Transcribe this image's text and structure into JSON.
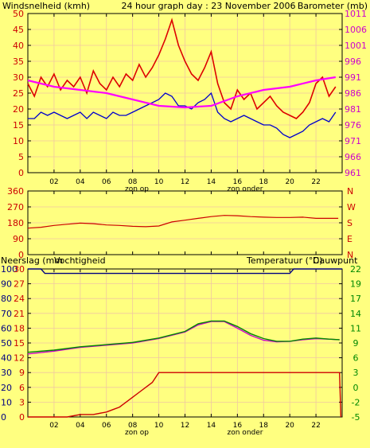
{
  "colors": {
    "background": "#ffff80",
    "frame": "#000000",
    "grid": "#f0c8a0",
    "wind_gust": "#dd0000",
    "wind_avg": "#0000cc",
    "barometer": "#ff00ff",
    "direction": "#cc0000",
    "rain": "#cc0000",
    "humidity": "#000080",
    "temperature": "#008800",
    "dewpoint": "#cc00cc",
    "left_axis_text": "#cc0000",
    "barometer_text": "#cc00cc",
    "direction_text": "#cc0000",
    "humidity_text": "#000080",
    "temperature_text": "#008800"
  },
  "header": {
    "title": "24 hour graph day : 23 November 2006",
    "left_label": "Windsnelheid (kmh)",
    "right_label": "Barometer (mb)"
  },
  "bottom_header": {
    "rain_label": "Neerslag (mm",
    "humidity_label": "Vochtigheid",
    "temp_label": "Temperatuur (°C)",
    "dew_label": "Dauwpunt"
  },
  "sun": {
    "rise": "zon op",
    "set": "zon onder"
  },
  "chart_data": [
    {
      "type": "line",
      "title": "24 hour graph day : 23 November 2006",
      "xticks": [
        "02",
        "04",
        "06",
        "08",
        "10",
        "12",
        "14",
        "16",
        "18",
        "20",
        "22"
      ],
      "y_left": {
        "label": "Windsnelheid (kmh)",
        "ticks": [
          "0",
          "5",
          "10",
          "15",
          "20",
          "25",
          "30",
          "35",
          "40",
          "45",
          "50"
        ],
        "range": [
          0,
          50
        ]
      },
      "y_right": {
        "label": "Barometer (mb)",
        "ticks": [
          "961",
          "966",
          "971",
          "976",
          "981",
          "986",
          "991",
          "996",
          "1001",
          "1006",
          "1011"
        ],
        "range": [
          961,
          1011
        ]
      },
      "series": [
        {
          "key": "gust",
          "x": [
            0.0,
            0.5,
            1.0,
            1.5,
            2.0,
            2.5,
            3.0,
            3.5,
            4.0,
            4.5,
            5.0,
            5.5,
            6.0,
            6.5,
            7.0,
            7.5,
            8.0,
            8.5,
            9.0,
            9.5,
            10.0,
            10.5,
            11.0,
            11.5,
            12.0,
            12.5,
            13.0,
            13.5,
            14.0,
            14.5,
            15.0,
            15.5,
            16.0,
            16.5,
            17.0,
            17.5,
            18.0,
            18.5,
            19.0,
            19.5,
            20.0,
            20.5,
            21.0,
            21.5,
            22.0,
            22.5,
            23.0,
            23.5
          ],
          "y": [
            28,
            24,
            30,
            27,
            31,
            26,
            29,
            27,
            30,
            25,
            32,
            28,
            26,
            30,
            27,
            31,
            29,
            34,
            30,
            33,
            37,
            42,
            48,
            40,
            35,
            31,
            29,
            33,
            38,
            28,
            22,
            20,
            26,
            23,
            25,
            20,
            22,
            24,
            21,
            19,
            18,
            17,
            19,
            22,
            28,
            30,
            24,
            27
          ]
        },
        {
          "key": "avg",
          "x": [
            0.0,
            0.5,
            1.0,
            1.5,
            2.0,
            2.5,
            3.0,
            3.5,
            4.0,
            4.5,
            5.0,
            5.5,
            6.0,
            6.5,
            7.0,
            7.5,
            8.0,
            8.5,
            9.0,
            9.5,
            10.0,
            10.5,
            11.0,
            11.5,
            12.0,
            12.5,
            13.0,
            13.5,
            14.0,
            14.5,
            15.0,
            15.5,
            16.0,
            16.5,
            17.0,
            17.5,
            18.0,
            18.5,
            19.0,
            19.5,
            20.0,
            20.5,
            21.0,
            21.5,
            22.0,
            22.5,
            23.0,
            23.5
          ],
          "y": [
            17,
            17,
            19,
            18,
            19,
            18,
            17,
            18,
            19,
            17,
            19,
            18,
            17,
            19,
            18,
            18,
            19,
            20,
            21,
            22,
            23,
            25,
            24,
            21,
            21,
            20,
            22,
            23,
            25,
            19,
            17,
            16,
            17,
            18,
            17,
            16,
            15,
            15,
            14,
            12,
            11,
            12,
            13,
            15,
            16,
            17,
            16,
            19
          ]
        },
        {
          "key": "baro",
          "x": [
            0,
            2,
            4,
            6,
            8,
            10,
            12,
            14,
            16,
            18,
            20,
            22,
            23.5
          ],
          "y": [
            990,
            988,
            987,
            986,
            984,
            982,
            981.5,
            982,
            985,
            987,
            988,
            990,
            991
          ]
        }
      ]
    },
    {
      "type": "line",
      "yticks": [
        "360",
        "270",
        "180",
        "90",
        "0"
      ],
      "y_range": [
        0,
        360
      ],
      "right_labels": [
        "N",
        "W",
        "S",
        "E",
        "N"
      ],
      "series": [
        {
          "key": "direction",
          "x": [
            0,
            1,
            2,
            3,
            4,
            5,
            6,
            7,
            8,
            9,
            10,
            11,
            12,
            13,
            14,
            15,
            16,
            17,
            18,
            19,
            20,
            21,
            22,
            23,
            23.7
          ],
          "y": [
            150,
            155,
            165,
            172,
            178,
            175,
            168,
            165,
            160,
            158,
            162,
            185,
            195,
            205,
            215,
            222,
            220,
            215,
            212,
            210,
            210,
            212,
            205,
            205,
            205
          ]
        }
      ]
    },
    {
      "type": "line",
      "y_rain": {
        "ticks": [
          "30",
          "27",
          "24",
          "21",
          "18",
          "15",
          "12",
          "9",
          "6",
          "3",
          "0"
        ],
        "range": [
          0,
          30
        ]
      },
      "y_hum": {
        "ticks": [
          "100",
          "90",
          "80",
          "70",
          "60",
          "50",
          "40",
          "30",
          "20",
          "10",
          "0"
        ],
        "range": [
          0,
          100
        ]
      },
      "y_temp": {
        "ticks": [
          "22",
          "19",
          "17",
          "14",
          "11",
          "9",
          "6",
          "3",
          "0",
          "-2",
          "-5"
        ],
        "range": [
          -5,
          22
        ]
      },
      "series": [
        {
          "key": "rain",
          "x": [
            0,
            3,
            4,
            5,
            6,
            6.5,
            7,
            7.5,
            8,
            8.5,
            9,
            9.5,
            10,
            23.8,
            23.9
          ],
          "y": [
            0,
            0,
            0.5,
            0.5,
            1,
            1.5,
            2,
            3,
            4,
            5,
            6,
            7,
            9,
            9,
            0
          ]
        },
        {
          "key": "humidity",
          "x": [
            0,
            1,
            1.3,
            2,
            10,
            20,
            20.3,
            24
          ],
          "y": [
            100,
            100,
            97,
            97,
            97,
            97,
            100,
            100
          ]
        },
        {
          "key": "temperature",
          "x": [
            0,
            2,
            4,
            6,
            8,
            10,
            12,
            13,
            14,
            15,
            16,
            17,
            18,
            19,
            20,
            21,
            22,
            23,
            23.8
          ],
          "y": [
            6.8,
            7.2,
            7.8,
            8.2,
            8.6,
            9.4,
            10.6,
            12.0,
            12.5,
            12.5,
            11.5,
            10.2,
            9.3,
            8.8,
            8.8,
            9.2,
            9.4,
            9.2,
            9.1
          ]
        },
        {
          "key": "dewpoint",
          "x": [
            0,
            2,
            4,
            6,
            8,
            10,
            12,
            13,
            14,
            15,
            16,
            17,
            18,
            19,
            20,
            21,
            22,
            23,
            23.8
          ],
          "y": [
            6.5,
            7.0,
            7.7,
            8.1,
            8.5,
            9.3,
            10.5,
            11.8,
            12.4,
            12.4,
            11.2,
            9.9,
            9.0,
            8.7,
            8.8,
            9.1,
            9.3,
            9.2,
            9.1
          ]
        }
      ]
    }
  ]
}
